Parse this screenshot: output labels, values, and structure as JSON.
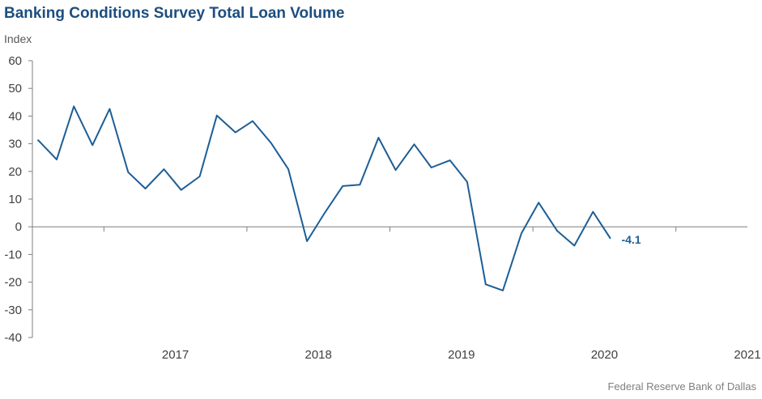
{
  "title": "Banking Conditions Survey Total Loan Volume",
  "source": "Federal Reserve Bank of Dallas",
  "colors": {
    "title": "#1c4e80",
    "series": "#1c5e96",
    "axis": "#7f7f7f",
    "text": "#404040"
  },
  "chart_data": {
    "type": "line",
    "title": "Banking Conditions Survey Total Loan Volume",
    "ylabel": "Index",
    "xlabel": "",
    "ylim": [
      -40,
      60
    ],
    "yticks": [
      60,
      50,
      40,
      30,
      20,
      10,
      0,
      -10,
      -20,
      -30,
      -40
    ],
    "x_range": [
      2016.5,
      2021.5
    ],
    "year_labels": [
      "2017",
      "2018",
      "2019",
      "2020",
      "2021"
    ],
    "year_boundaries": [
      2017,
      2018,
      2019,
      2020,
      2021
    ],
    "grid": false,
    "series": [
      {
        "x": [
          2016.54,
          2016.67,
          2016.79,
          2016.92,
          2017.04,
          2017.17,
          2017.29,
          2017.42,
          2017.54,
          2017.67,
          2017.79,
          2017.92,
          2018.04,
          2018.17,
          2018.29,
          2018.42,
          2018.54,
          2018.67,
          2018.79,
          2018.92,
          2019.04,
          2019.17,
          2019.29,
          2019.42,
          2019.54,
          2019.67,
          2019.79,
          2019.92,
          2020.04,
          2020.17,
          2020.29,
          2020.42,
          2020.54
        ],
        "values": [
          31.3,
          24.3,
          43.5,
          29.5,
          42.6,
          19.7,
          13.8,
          20.8,
          13.3,
          18.2,
          40.2,
          34.1,
          38.2,
          30.2,
          20.8,
          -5.2,
          4.7,
          14.7,
          15.2,
          32.2,
          20.5,
          29.8,
          21.4,
          24.0,
          16.2,
          -20.8,
          -23.0,
          -2.3,
          8.7,
          -1.5,
          -6.8,
          5.4,
          -4.1
        ]
      }
    ],
    "annotations": [
      {
        "text": "-4.1",
        "x": 2020.54,
        "y": -4.1
      }
    ]
  }
}
